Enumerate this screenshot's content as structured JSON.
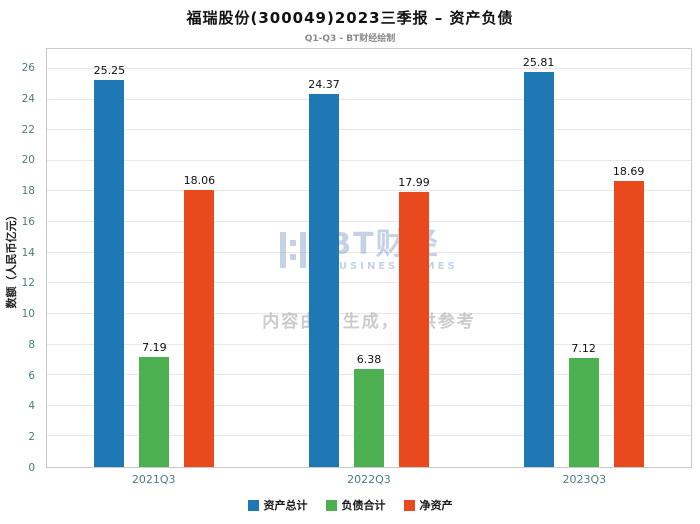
{
  "title": "福瑞股份(300049)2023三季报 – 资产负债",
  "subtitle": "Q1-Q3 - BT财经绘制",
  "watermark": {
    "logo_text": "BT财经",
    "logo_sub": "BUSINESSTIMES",
    "disclaimer": "内容由AI生成，仅供参考"
  },
  "chart_data": {
    "type": "bar",
    "title": "福瑞股份(300049)2023三季报 – 资产负债",
    "subtitle": "Q1-Q3 - BT财经绘制",
    "categories": [
      "2021Q3",
      "2022Q3",
      "2023Q3"
    ],
    "series": [
      {
        "name": "资产总计",
        "color": "#1F77B4",
        "values": [
          25.25,
          24.37,
          25.81
        ]
      },
      {
        "name": "负债合计",
        "color": "#4CAF50",
        "values": [
          7.19,
          6.38,
          7.12
        ]
      },
      {
        "name": "净资产",
        "color": "#E8491D",
        "values": [
          18.06,
          17.99,
          18.69
        ]
      }
    ],
    "xlabel": "",
    "ylabel": "数额（人民币亿元）",
    "ylim": [
      0,
      27.3
    ],
    "yticks": [
      0,
      2,
      4,
      6,
      8,
      10,
      12,
      14,
      16,
      18,
      20,
      22,
      24,
      26
    ],
    "grid": true,
    "legend_position": "bottom"
  }
}
